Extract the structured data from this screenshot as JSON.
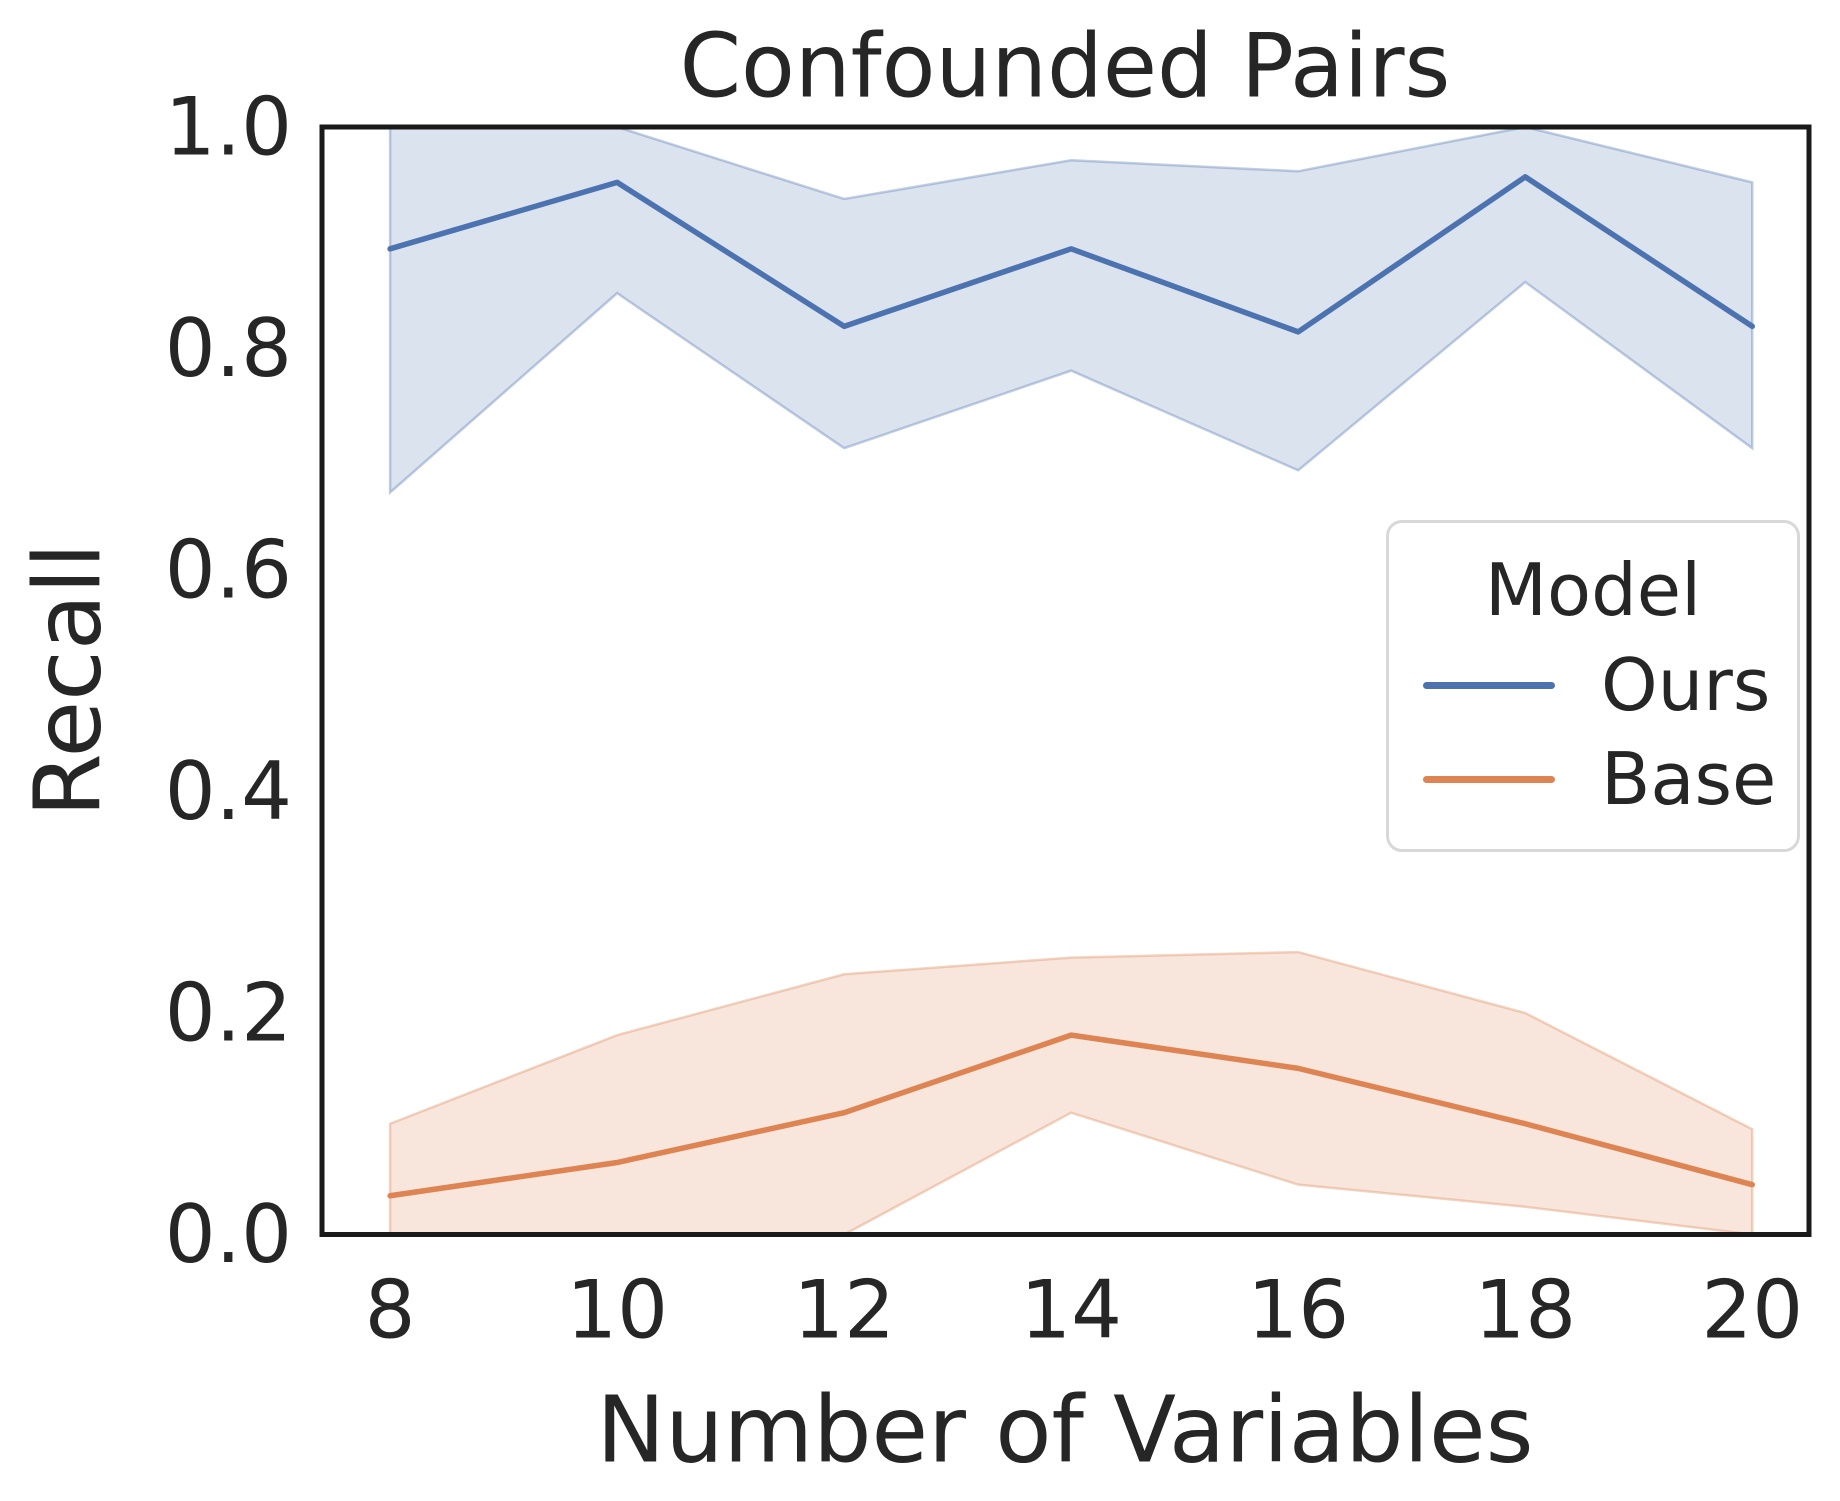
{
  "chart_data": {
    "type": "line",
    "title": "Confounded Pairs",
    "xlabel": "Number of Variables",
    "ylabel": "Recall",
    "x": [
      8,
      10,
      12,
      14,
      16,
      18,
      20
    ],
    "x_tick_labels": [
      "8",
      "10",
      "12",
      "14",
      "16",
      "18",
      "20"
    ],
    "y_tick_values": [
      0.0,
      0.2,
      0.4,
      0.6,
      0.8,
      1.0
    ],
    "y_tick_labels": [
      "0.0",
      "0.2",
      "0.4",
      "0.6",
      "0.8",
      "1.0"
    ],
    "xlim": [
      7.4,
      20.5
    ],
    "ylim": [
      0.0,
      1.0
    ],
    "grid": false,
    "band_alpha": 0.2,
    "legend": {
      "title": "Model",
      "position": "center right"
    },
    "series": [
      {
        "name": "Ours",
        "color": "#4c72b0",
        "values": [
          0.89,
          0.95,
          0.82,
          0.89,
          0.815,
          0.955,
          0.82
        ],
        "band_upper": [
          1.0,
          1.0,
          0.935,
          0.97,
          0.96,
          1.0,
          0.95
        ],
        "band_lower": [
          0.67,
          0.85,
          0.71,
          0.78,
          0.69,
          0.86,
          0.71
        ]
      },
      {
        "name": "Base",
        "color": "#dd8452",
        "values": [
          0.035,
          0.065,
          0.11,
          0.18,
          0.15,
          0.1,
          0.045
        ],
        "band_upper": [
          0.1,
          0.18,
          0.235,
          0.25,
          0.255,
          0.2,
          0.095
        ],
        "band_lower": [
          0.0,
          0.0,
          0.0,
          0.11,
          0.045,
          0.025,
          0.0
        ]
      }
    ]
  }
}
